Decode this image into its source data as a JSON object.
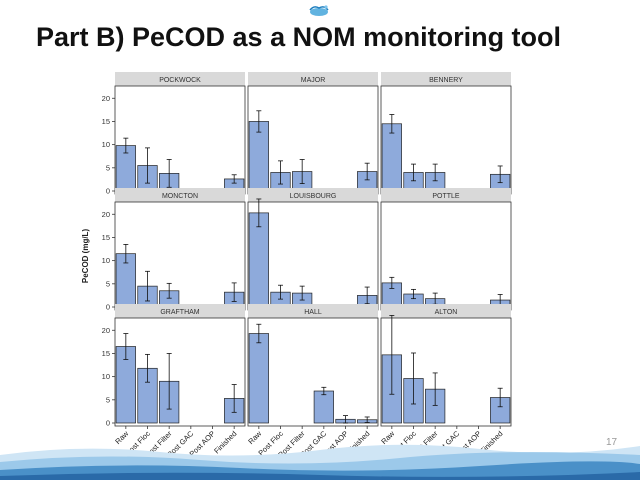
{
  "slide": {
    "title": "Part B) PeCOD as a NOM monitoring tool",
    "page_number": "17"
  },
  "colors": {
    "bar_fill": "#8eaadb",
    "bar_stroke": "#222222",
    "strip_fill": "#d9d9d9",
    "panel_border": "#333333",
    "wave": "#4a90c8",
    "logo": "#3aa0d8"
  },
  "icons": {
    "logo": "water-droplet-logo",
    "wave": "water-wave-graphic"
  },
  "chart_data": {
    "type": "bar",
    "layout": "facet-grid 3x3",
    "ylabel": "PeCOD (mg/L)",
    "xlabel": "",
    "ylim": [
      0,
      22
    ],
    "yticks": [
      0,
      5,
      10,
      15,
      20
    ],
    "categories": [
      "Raw",
      "Post Floc",
      "Post Filter",
      "Post GAC",
      "Post AOP",
      "Finished"
    ],
    "grid": false,
    "legend": "none",
    "panels": [
      {
        "name": "POCKWOCK",
        "values": [
          9.8,
          5.5,
          3.8,
          null,
          null,
          2.6
        ],
        "errors": [
          1.6,
          3.8,
          3.0,
          null,
          null,
          0.9
        ]
      },
      {
        "name": "MAJOR",
        "values": [
          15.0,
          4.0,
          4.2,
          null,
          null,
          4.2
        ],
        "errors": [
          2.3,
          2.5,
          2.6,
          null,
          null,
          1.8
        ]
      },
      {
        "name": "BENNERY",
        "values": [
          14.5,
          4.0,
          4.0,
          null,
          null,
          3.6
        ],
        "errors": [
          2.0,
          1.8,
          1.8,
          null,
          null,
          1.8
        ]
      },
      {
        "name": "MONCTON",
        "values": [
          11.5,
          4.5,
          3.5,
          null,
          null,
          3.2
        ],
        "errors": [
          2.0,
          3.2,
          1.6,
          null,
          null,
          2.0
        ]
      },
      {
        "name": "LOUISBOURG",
        "values": [
          20.3,
          3.2,
          3.0,
          null,
          null,
          2.5
        ],
        "errors": [
          3.0,
          1.5,
          1.5,
          null,
          null,
          1.8
        ]
      },
      {
        "name": "POTTLE",
        "values": [
          5.2,
          2.8,
          1.8,
          null,
          null,
          1.5
        ],
        "errors": [
          1.2,
          1.0,
          1.2,
          null,
          null,
          1.2
        ]
      },
      {
        "name": "GRAFTHAM",
        "values": [
          16.5,
          11.8,
          9.0,
          null,
          null,
          5.3
        ],
        "errors": [
          2.8,
          3.0,
          6.0,
          null,
          null,
          3.0
        ]
      },
      {
        "name": "HALL",
        "values": [
          19.3,
          null,
          null,
          6.9,
          0.8,
          0.7
        ],
        "errors": [
          2.0,
          null,
          null,
          0.8,
          0.8,
          0.6
        ]
      },
      {
        "name": "ALTON",
        "values": [
          14.7,
          9.6,
          7.3,
          null,
          null,
          5.5
        ],
        "errors": [
          8.5,
          5.5,
          3.5,
          null,
          null,
          2.0
        ]
      }
    ]
  }
}
